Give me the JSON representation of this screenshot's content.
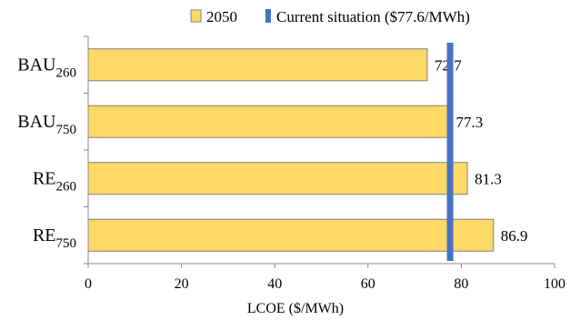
{
  "chart_data": {
    "type": "bar",
    "orientation": "horizontal",
    "categories": [
      {
        "main": "BAU",
        "sub": "260"
      },
      {
        "main": "BAU",
        "sub": "750"
      },
      {
        "main": "RE",
        "sub": "260"
      },
      {
        "main": "RE",
        "sub": "750"
      }
    ],
    "series": [
      {
        "name": "2050",
        "values": [
          72.7,
          77.3,
          81.3,
          86.9
        ],
        "color": "#FFD966"
      }
    ],
    "value_labels": [
      "72.7",
      "77.3",
      "81.3",
      "86.9"
    ],
    "reference_line": {
      "name": "Current situation ($77.6/MWh)",
      "value": 77.6,
      "color": "#4472C4"
    },
    "xlabel": "LCOE ($/MWh)",
    "ylabel": "",
    "xlim": [
      0,
      100
    ],
    "xticks": [
      0,
      20,
      40,
      60,
      80,
      100
    ],
    "tick_labels": [
      "0",
      "20",
      "40",
      "60",
      "80",
      "100"
    ],
    "grid": false,
    "legend_position": "top-right",
    "bar_border_color": "#7f7f7f"
  }
}
